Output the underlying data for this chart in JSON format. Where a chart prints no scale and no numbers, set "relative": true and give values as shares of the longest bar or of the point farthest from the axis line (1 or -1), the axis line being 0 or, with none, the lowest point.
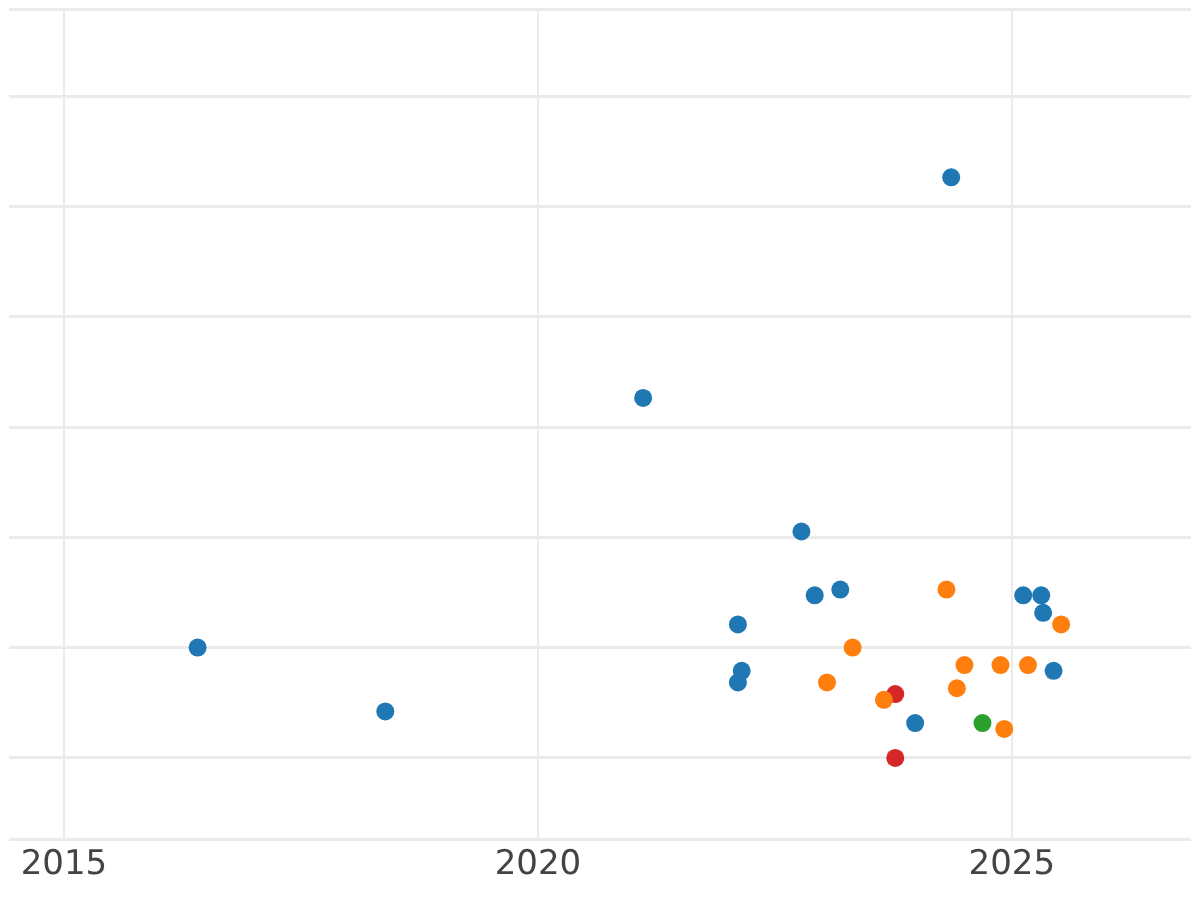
{
  "chart_data": {
    "type": "scatter",
    "relative": true,
    "xlim": [
      2014.42,
      2026.89
    ],
    "xticks": [
      2015,
      2020,
      2025
    ],
    "grid": true,
    "tick_labels": "x",
    "marker": "circle",
    "series": [
      {
        "color": "#1f77b4",
        "x": [
          2016.41,
          2018.39,
          2021.11,
          2024.36,
          2022.78,
          2022.92,
          2023.19,
          2022.11,
          2022.15,
          2022.11,
          2023.98,
          2025.12,
          2025.31,
          2025.33,
          2025.44
        ],
        "values": [
          0.19,
          0.08,
          0.62,
          1.0,
          0.39,
          0.28,
          0.29,
          0.23,
          0.15,
          0.13,
          0.06,
          0.28,
          0.28,
          0.25,
          0.15
        ]
      },
      {
        "color": "#ff7f0e",
        "x": [
          2024.31,
          2023.32,
          2023.05,
          2023.65,
          2024.5,
          2024.42,
          2024.88,
          2025.17,
          2025.52,
          2024.92
        ],
        "values": [
          0.29,
          0.19,
          0.13,
          0.1,
          0.16,
          0.12,
          0.16,
          0.16,
          0.23,
          0.05
        ]
      },
      {
        "color": "#d62728",
        "x": [
          2023.77,
          2023.77
        ],
        "values": [
          0.11,
          0
        ]
      },
      {
        "color": "#2ca02c",
        "x": [
          2024.69
        ],
        "values": [
          0.06
        ]
      }
    ]
  }
}
